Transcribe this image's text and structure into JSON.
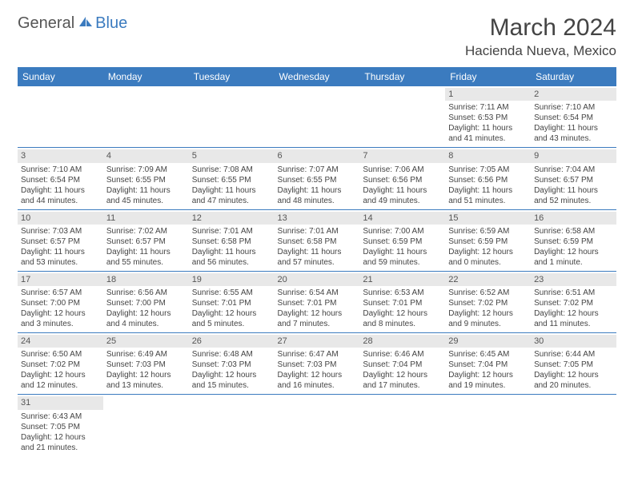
{
  "logo": {
    "text_general": "General",
    "text_blue": "Blue"
  },
  "title": {
    "month": "March 2024",
    "location": "Hacienda Nueva, Mexico"
  },
  "colors": {
    "header_bg": "#3b7bbf",
    "header_fg": "#ffffff",
    "daynum_bg": "#e8e8e8",
    "border": "#3b7bbf"
  },
  "typography": {
    "title_fontsize": 30,
    "location_fontsize": 17,
    "header_fontsize": 12,
    "cell_fontsize": 10
  },
  "weekdays": [
    "Sunday",
    "Monday",
    "Tuesday",
    "Wednesday",
    "Thursday",
    "Friday",
    "Saturday"
  ],
  "weeks": [
    [
      null,
      null,
      null,
      null,
      null,
      {
        "num": "1",
        "sunrise": "Sunrise: 7:11 AM",
        "sunset": "Sunset: 6:53 PM",
        "day1": "Daylight: 11 hours",
        "day2": "and 41 minutes."
      },
      {
        "num": "2",
        "sunrise": "Sunrise: 7:10 AM",
        "sunset": "Sunset: 6:54 PM",
        "day1": "Daylight: 11 hours",
        "day2": "and 43 minutes."
      }
    ],
    [
      {
        "num": "3",
        "sunrise": "Sunrise: 7:10 AM",
        "sunset": "Sunset: 6:54 PM",
        "day1": "Daylight: 11 hours",
        "day2": "and 44 minutes."
      },
      {
        "num": "4",
        "sunrise": "Sunrise: 7:09 AM",
        "sunset": "Sunset: 6:55 PM",
        "day1": "Daylight: 11 hours",
        "day2": "and 45 minutes."
      },
      {
        "num": "5",
        "sunrise": "Sunrise: 7:08 AM",
        "sunset": "Sunset: 6:55 PM",
        "day1": "Daylight: 11 hours",
        "day2": "and 47 minutes."
      },
      {
        "num": "6",
        "sunrise": "Sunrise: 7:07 AM",
        "sunset": "Sunset: 6:55 PM",
        "day1": "Daylight: 11 hours",
        "day2": "and 48 minutes."
      },
      {
        "num": "7",
        "sunrise": "Sunrise: 7:06 AM",
        "sunset": "Sunset: 6:56 PM",
        "day1": "Daylight: 11 hours",
        "day2": "and 49 minutes."
      },
      {
        "num": "8",
        "sunrise": "Sunrise: 7:05 AM",
        "sunset": "Sunset: 6:56 PM",
        "day1": "Daylight: 11 hours",
        "day2": "and 51 minutes."
      },
      {
        "num": "9",
        "sunrise": "Sunrise: 7:04 AM",
        "sunset": "Sunset: 6:57 PM",
        "day1": "Daylight: 11 hours",
        "day2": "and 52 minutes."
      }
    ],
    [
      {
        "num": "10",
        "sunrise": "Sunrise: 7:03 AM",
        "sunset": "Sunset: 6:57 PM",
        "day1": "Daylight: 11 hours",
        "day2": "and 53 minutes."
      },
      {
        "num": "11",
        "sunrise": "Sunrise: 7:02 AM",
        "sunset": "Sunset: 6:57 PM",
        "day1": "Daylight: 11 hours",
        "day2": "and 55 minutes."
      },
      {
        "num": "12",
        "sunrise": "Sunrise: 7:01 AM",
        "sunset": "Sunset: 6:58 PM",
        "day1": "Daylight: 11 hours",
        "day2": "and 56 minutes."
      },
      {
        "num": "13",
        "sunrise": "Sunrise: 7:01 AM",
        "sunset": "Sunset: 6:58 PM",
        "day1": "Daylight: 11 hours",
        "day2": "and 57 minutes."
      },
      {
        "num": "14",
        "sunrise": "Sunrise: 7:00 AM",
        "sunset": "Sunset: 6:59 PM",
        "day1": "Daylight: 11 hours",
        "day2": "and 59 minutes."
      },
      {
        "num": "15",
        "sunrise": "Sunrise: 6:59 AM",
        "sunset": "Sunset: 6:59 PM",
        "day1": "Daylight: 12 hours",
        "day2": "and 0 minutes."
      },
      {
        "num": "16",
        "sunrise": "Sunrise: 6:58 AM",
        "sunset": "Sunset: 6:59 PM",
        "day1": "Daylight: 12 hours",
        "day2": "and 1 minute."
      }
    ],
    [
      {
        "num": "17",
        "sunrise": "Sunrise: 6:57 AM",
        "sunset": "Sunset: 7:00 PM",
        "day1": "Daylight: 12 hours",
        "day2": "and 3 minutes."
      },
      {
        "num": "18",
        "sunrise": "Sunrise: 6:56 AM",
        "sunset": "Sunset: 7:00 PM",
        "day1": "Daylight: 12 hours",
        "day2": "and 4 minutes."
      },
      {
        "num": "19",
        "sunrise": "Sunrise: 6:55 AM",
        "sunset": "Sunset: 7:01 PM",
        "day1": "Daylight: 12 hours",
        "day2": "and 5 minutes."
      },
      {
        "num": "20",
        "sunrise": "Sunrise: 6:54 AM",
        "sunset": "Sunset: 7:01 PM",
        "day1": "Daylight: 12 hours",
        "day2": "and 7 minutes."
      },
      {
        "num": "21",
        "sunrise": "Sunrise: 6:53 AM",
        "sunset": "Sunset: 7:01 PM",
        "day1": "Daylight: 12 hours",
        "day2": "and 8 minutes."
      },
      {
        "num": "22",
        "sunrise": "Sunrise: 6:52 AM",
        "sunset": "Sunset: 7:02 PM",
        "day1": "Daylight: 12 hours",
        "day2": "and 9 minutes."
      },
      {
        "num": "23",
        "sunrise": "Sunrise: 6:51 AM",
        "sunset": "Sunset: 7:02 PM",
        "day1": "Daylight: 12 hours",
        "day2": "and 11 minutes."
      }
    ],
    [
      {
        "num": "24",
        "sunrise": "Sunrise: 6:50 AM",
        "sunset": "Sunset: 7:02 PM",
        "day1": "Daylight: 12 hours",
        "day2": "and 12 minutes."
      },
      {
        "num": "25",
        "sunrise": "Sunrise: 6:49 AM",
        "sunset": "Sunset: 7:03 PM",
        "day1": "Daylight: 12 hours",
        "day2": "and 13 minutes."
      },
      {
        "num": "26",
        "sunrise": "Sunrise: 6:48 AM",
        "sunset": "Sunset: 7:03 PM",
        "day1": "Daylight: 12 hours",
        "day2": "and 15 minutes."
      },
      {
        "num": "27",
        "sunrise": "Sunrise: 6:47 AM",
        "sunset": "Sunset: 7:03 PM",
        "day1": "Daylight: 12 hours",
        "day2": "and 16 minutes."
      },
      {
        "num": "28",
        "sunrise": "Sunrise: 6:46 AM",
        "sunset": "Sunset: 7:04 PM",
        "day1": "Daylight: 12 hours",
        "day2": "and 17 minutes."
      },
      {
        "num": "29",
        "sunrise": "Sunrise: 6:45 AM",
        "sunset": "Sunset: 7:04 PM",
        "day1": "Daylight: 12 hours",
        "day2": "and 19 minutes."
      },
      {
        "num": "30",
        "sunrise": "Sunrise: 6:44 AM",
        "sunset": "Sunset: 7:05 PM",
        "day1": "Daylight: 12 hours",
        "day2": "and 20 minutes."
      }
    ],
    [
      {
        "num": "31",
        "sunrise": "Sunrise: 6:43 AM",
        "sunset": "Sunset: 7:05 PM",
        "day1": "Daylight: 12 hours",
        "day2": "and 21 minutes."
      },
      null,
      null,
      null,
      null,
      null,
      null
    ]
  ]
}
